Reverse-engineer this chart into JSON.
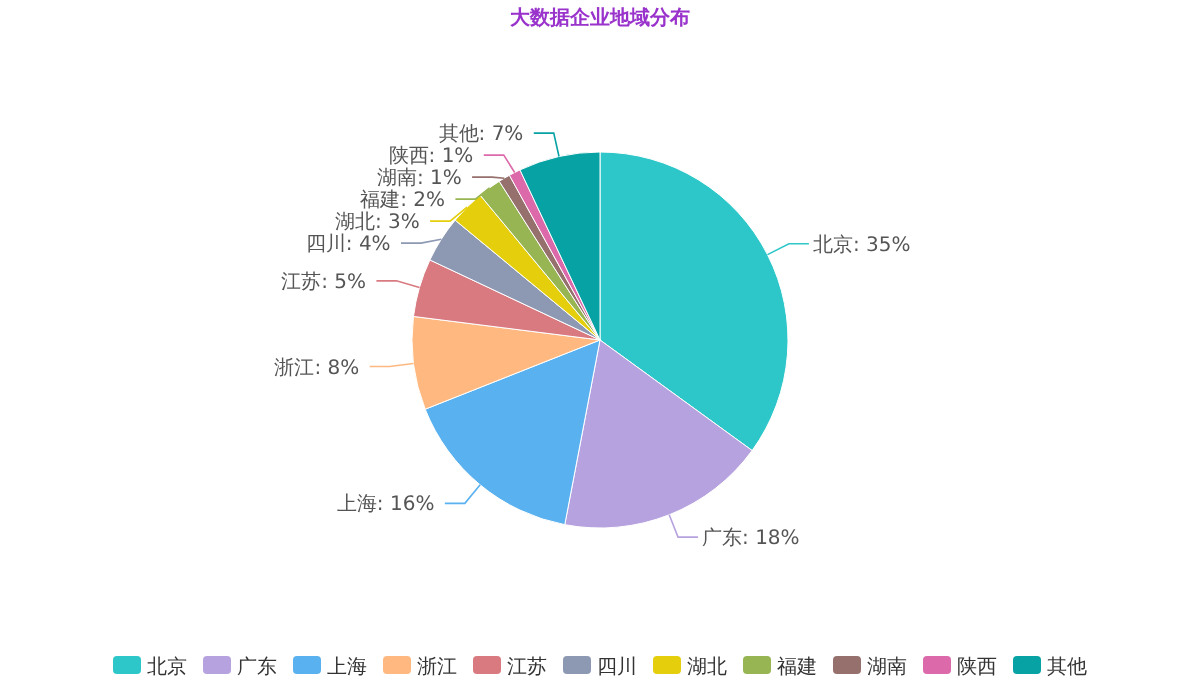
{
  "chart_data": {
    "type": "pie",
    "title": "大数据企业地域分布",
    "categories": [
      "北京",
      "广东",
      "上海",
      "浙江",
      "江苏",
      "四川",
      "湖北",
      "福建",
      "湖南",
      "陕西",
      "其他"
    ],
    "values": [
      35,
      18,
      16,
      8,
      5,
      4,
      3,
      2,
      1,
      1,
      7
    ],
    "colors": [
      "#2ec7c9",
      "#b6a2de",
      "#5ab1ef",
      "#ffb980",
      "#d87a80",
      "#8d98b3",
      "#e5cf0d",
      "#97b552",
      "#95706d",
      "#dc69aa",
      "#07a2a4"
    ],
    "value_labels": [
      ": 35%",
      ": 18%",
      ": 16%",
      ": 8%",
      ": 5%",
      ": 4%",
      ": 3%",
      ": 2%",
      ": 1%",
      ": 1%",
      ": 7%"
    ],
    "legend": "bottom"
  }
}
